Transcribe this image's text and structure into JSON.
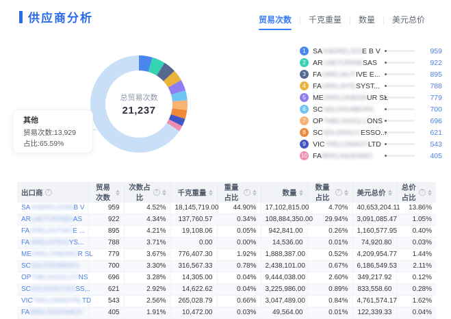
{
  "header": {
    "title": "供应商分析",
    "tabs": [
      {
        "id": "trade-count",
        "label": "贸易次数",
        "active": true
      },
      {
        "id": "kg-weight",
        "label": "千克重量",
        "active": false
      },
      {
        "id": "quantity",
        "label": "数量",
        "active": false
      },
      {
        "id": "usd-total",
        "label": "美元总价",
        "active": false
      }
    ]
  },
  "chart_data": {
    "type": "pie",
    "subtype": "donut",
    "total_label": "总贸易次数",
    "total_value": "21,237",
    "total": 21237,
    "legend_position": "right",
    "tooltip": {
      "name": "其他",
      "line1": "贸易次数:13,929",
      "line2": "占比:65.59%"
    },
    "other": {
      "name": "其他",
      "value": 13929,
      "share": "65.59%",
      "color": "#C9DFF7"
    },
    "series": [
      {
        "rank": 1,
        "prefix": "SA",
        "masked": "XNDRELSOI",
        "suffix": " E B V",
        "value": 959,
        "color": "#4A86F0"
      },
      {
        "rank": 2,
        "prefix": "AR",
        "masked": "LMETORINB",
        "suffix": " SAS",
        "value": 922,
        "color": "#36D3B2"
      },
      {
        "rank": 3,
        "prefix": "FA",
        "masked": "ORELIAUT",
        "suffix": "IVE E...",
        "value": 895,
        "color": "#55688F"
      },
      {
        "rank": 4,
        "prefix": "FA",
        "masked": "ORELINTE",
        "suffix": " SYST...",
        "value": 788,
        "color": "#EAB43C"
      },
      {
        "rank": 5,
        "prefix": "ME",
        "masked": "DRELONBZM",
        "suffix": "UR SL",
        "value": 779,
        "color": "#8E7CF0"
      },
      {
        "rank": 6,
        "prefix": "SC",
        "masked": "NDLEROIBEIRX",
        "suffix": "",
        "value": 700,
        "color": "#6FC5F2"
      },
      {
        "rank": 7,
        "prefix": "OP",
        "masked": "TMELINSOLU",
        "suffix": "ONS",
        "value": 696,
        "color": "#F8B274"
      },
      {
        "rank": 8,
        "prefix": "SC",
        "masked": "NDLERACC",
        "suffix": "ESSO...",
        "value": 621,
        "color": "#EF8A3B"
      },
      {
        "rank": 9,
        "prefix": "VIC",
        "masked": "TRELONMOT",
        "suffix": "LTD",
        "value": 543,
        "color": "#4156C6"
      },
      {
        "rank": 10,
        "prefix": "FA",
        "masked": "BRELINGENMO",
        "suffix": "",
        "value": 405,
        "color": "#F08CB0"
      }
    ]
  },
  "table": {
    "columns": [
      {
        "id": "exporter",
        "label": "出口商",
        "info": true,
        "sort": false,
        "align": "left"
      },
      {
        "id": "trade-count",
        "label": "贸易次数",
        "info": false,
        "sort": true,
        "align": "right"
      },
      {
        "id": "count-share",
        "label": "次数占比",
        "info": true,
        "sort": true,
        "align": "right"
      },
      {
        "id": "kg-weight",
        "label": "千克重量",
        "info": false,
        "sort": true,
        "align": "right"
      },
      {
        "id": "weight-share",
        "label": "重量占比",
        "info": true,
        "sort": true,
        "align": "right"
      },
      {
        "id": "quantity",
        "label": "数量",
        "info": false,
        "sort": true,
        "align": "right"
      },
      {
        "id": "quantity-share",
        "label": "数量占比",
        "info": true,
        "sort": true,
        "align": "right"
      },
      {
        "id": "usd-total",
        "label": "美元总价",
        "info": false,
        "sort": true,
        "align": "right"
      },
      {
        "id": "price-share",
        "label": "总价占比",
        "info": true,
        "sort": true,
        "align": "right"
      }
    ],
    "rows": [
      {
        "exporter": {
          "prefix": "SA",
          "masked": "XNDRELSOIM",
          "suffix": " B V"
        },
        "cells": [
          "959",
          "4.52%",
          "18,145,719.00",
          "44.90%",
          "17,102,815.00",
          "4.70%",
          "40,653,204.11",
          "13.86%"
        ]
      },
      {
        "exporter": {
          "prefix": "AR",
          "masked": "LMETORINBS",
          "suffix": "AS"
        },
        "cells": [
          "922",
          "4.34%",
          "137,760.57",
          "0.34%",
          "108,884,350.00",
          "29.94%",
          "3,091,085.47",
          "1.05%"
        ]
      },
      {
        "exporter": {
          "prefix": "FA",
          "masked": "ORELIAUTMO",
          "suffix": "E ..."
        },
        "cells": [
          "895",
          "4.21%",
          "19,108.06",
          "0.05%",
          "942,841.00",
          "0.26%",
          "1,160,577.95",
          "0.40%"
        ]
      },
      {
        "exporter": {
          "prefix": "FA",
          "masked": "ORELINTEIO",
          "suffix": "YS..."
        },
        "cells": [
          "788",
          "3.71%",
          "0.00",
          "0.00%",
          "14,536.00",
          "0.01%",
          "74,920.80",
          "0.03%"
        ]
      },
      {
        "exporter": {
          "prefix": "ME",
          "masked": "DRELONBZMO",
          "suffix": "R SL"
        },
        "cells": [
          "779",
          "3.67%",
          "776,407.30",
          "1.92%",
          "1,888,387.00",
          "0.52%",
          "4,209,954.77",
          "1.44%"
        ]
      },
      {
        "exporter": {
          "prefix": "SC",
          "masked": "NDLEROIBEIRX",
          "suffix": ""
        },
        "cells": [
          "700",
          "3.30%",
          "316,567.33",
          "0.78%",
          "2,438,101.00",
          "0.67%",
          "6,186,549.53",
          "2.11%"
        ]
      },
      {
        "exporter": {
          "prefix": "OP",
          "masked": "TMELINSOLUTI",
          "suffix": "NS"
        },
        "cells": [
          "696",
          "3.28%",
          "14,305.00",
          "0.04%",
          "9,444,038.00",
          "2.60%",
          "349,217.92",
          "0.12%"
        ]
      },
      {
        "exporter": {
          "prefix": "SC",
          "masked": "NDLERACCES",
          "suffix": "SS,.."
        },
        "cells": [
          "621",
          "2.92%",
          "14,622.62",
          "0.04%",
          "3,225,986.00",
          "0.89%",
          "833,558.60",
          "0.28%"
        ]
      },
      {
        "exporter": {
          "prefix": "VIC",
          "masked": "TRELONMOTRL",
          "suffix": "TD"
        },
        "cells": [
          "543",
          "2.56%",
          "265,028.79",
          "0.66%",
          "3,047,489.00",
          "0.84%",
          "4,761,574.17",
          "1.62%"
        ]
      },
      {
        "exporter": {
          "prefix": "FA",
          "masked": "BRELINGENMOX",
          "suffix": ""
        },
        "cells": [
          "405",
          "1.91%",
          "10,472.00",
          "0.03%",
          "49,564.00",
          "0.01%",
          "122,339.33",
          "0.04%"
        ]
      }
    ]
  }
}
